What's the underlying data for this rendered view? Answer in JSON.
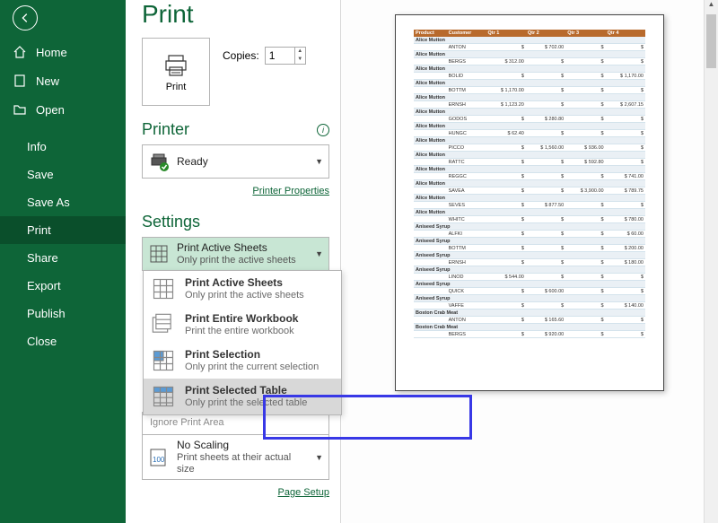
{
  "sidebar": {
    "items": [
      {
        "label": "Home"
      },
      {
        "label": "New"
      },
      {
        "label": "Open"
      },
      {
        "label": "Info"
      },
      {
        "label": "Save"
      },
      {
        "label": "Save As"
      },
      {
        "label": "Print"
      },
      {
        "label": "Share"
      },
      {
        "label": "Export"
      },
      {
        "label": "Publish"
      },
      {
        "label": "Close"
      }
    ]
  },
  "page_title": "Print",
  "print_button": "Print",
  "copies_label": "Copies:",
  "copies_value": "1",
  "printer_title": "Printer",
  "printer_status": "Ready",
  "printer_props": "Printer Properties",
  "settings_title": "Settings",
  "settings_selected": {
    "title": "Print Active Sheets",
    "sub": "Only print the active sheets"
  },
  "dd_options": [
    {
      "title": "Print Active Sheets",
      "sub": "Only print the active sheets"
    },
    {
      "title": "Print Entire Workbook",
      "sub": "Print the entire workbook"
    },
    {
      "title": "Print Selection",
      "sub": "Only print the current selection"
    },
    {
      "title": "Print Selected Table",
      "sub": "Only print the selected table"
    }
  ],
  "ignore_area": "Ignore Print Area",
  "scaling": {
    "title": "No Scaling",
    "sub": "Print sheets at their actual size"
  },
  "page_setup": "Page Setup",
  "table": {
    "header": [
      "Product",
      "Customer",
      "Qtr 1",
      "Qtr 2",
      "Qtr 3",
      "Qtr 4"
    ],
    "groups": [
      {
        "prod": "Alice Mutton",
        "rows": [
          [
            "ANTON",
            "$",
            "$  702.00",
            "$",
            "$"
          ],
          [
            "BERGS",
            "$  312.00",
            "$",
            "$",
            "$"
          ],
          [
            "BOLID",
            "$",
            "$",
            "$",
            "$ 1,170.00"
          ],
          [
            "BOTTM",
            "$ 1,170.00",
            "$",
            "$",
            "$"
          ],
          [
            "ERNSH",
            "$ 1,123.20",
            "$",
            "$",
            "$ 2,607.15"
          ],
          [
            "GODOS",
            "$",
            "$  280.80",
            "$",
            "$"
          ],
          [
            "HUNGC",
            "$   62.40",
            "$",
            "$",
            "$"
          ],
          [
            "PICCO",
            "$",
            "$ 1,560.00",
            "$  936.00",
            "$"
          ],
          [
            "RATTC",
            "$",
            "$",
            "$  592.80",
            "$"
          ],
          [
            "REGGC",
            "$",
            "$",
            "$",
            "$  741.00"
          ],
          [
            "SAVEA",
            "$",
            "$",
            "$ 3,900.00",
            "$  789.75"
          ],
          [
            "SEVES",
            "$",
            "$  877.50",
            "$",
            "$"
          ],
          [
            "WHITC",
            "$",
            "$",
            "$",
            "$  780.00"
          ]
        ]
      },
      {
        "prod": "Aniseed Syrup",
        "rows": [
          [
            "ALFKI",
            "$",
            "$",
            "$",
            "$   60.00"
          ],
          [
            "BOTTM",
            "$",
            "$",
            "$",
            "$  200.00"
          ],
          [
            "ERNSH",
            "$",
            "$",
            "$",
            "$  180.00"
          ],
          [
            "LINOD",
            "$  544.00",
            "$",
            "$",
            "$"
          ],
          [
            "QUICK",
            "$",
            "$  600.00",
            "$",
            "$"
          ],
          [
            "VAFFE",
            "$",
            "$",
            "$",
            "$  140.00"
          ]
        ]
      },
      {
        "prod": "Boston Crab Meat",
        "rows": [
          [
            "ANTON",
            "$",
            "$  165.60",
            "$",
            "$"
          ],
          [
            "BERGS",
            "$",
            "$  920.00",
            "$",
            "$"
          ]
        ]
      }
    ]
  },
  "colors": {
    "brand": "#0e6538",
    "highlight_border": "#3838e6",
    "table_header": "#b86a2c"
  }
}
